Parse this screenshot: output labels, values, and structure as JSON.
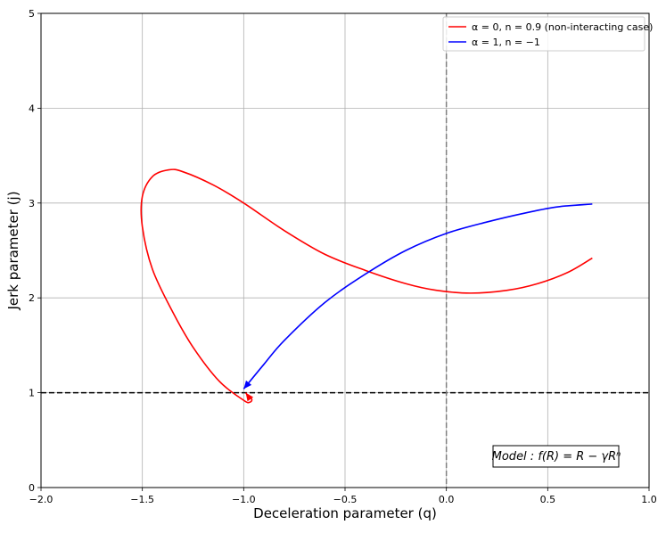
{
  "chart_data": {
    "type": "line",
    "xlabel": "Deceleration parameter (q)",
    "ylabel": "Jerk parameter (j)",
    "xlim": [
      -2.0,
      1.0
    ],
    "ylim": [
      0,
      5
    ],
    "xticks": [
      -2.0,
      -1.5,
      -1.0,
      -0.5,
      0.0,
      0.5,
      1.0
    ],
    "xtick_labels": [
      "−2.0",
      "−1.5",
      "−1.0",
      "−0.5",
      "0.0",
      "0.5",
      "1.0"
    ],
    "yticks": [
      0,
      1,
      2,
      3,
      4,
      5
    ],
    "ytick_labels": [
      "0",
      "1",
      "2",
      "3",
      "4",
      "5"
    ],
    "grid": true,
    "legend_position": "top-right",
    "reference_lines": [
      {
        "orientation": "horizontal",
        "value": 1,
        "color": "#000000",
        "style": "dashed"
      },
      {
        "orientation": "vertical",
        "value": 0,
        "color": "#808080",
        "style": "dashed"
      }
    ],
    "annotation": "Model : f(R) = R − γRⁿ",
    "series": [
      {
        "name": "α = 0, n = 0.9 (non-interacting case)",
        "color": "#ff0000",
        "points": [
          [
            0.72,
            2.42
          ],
          [
            0.6,
            2.27
          ],
          [
            0.45,
            2.15
          ],
          [
            0.3,
            2.08
          ],
          [
            0.12,
            2.05
          ],
          [
            -0.05,
            2.08
          ],
          [
            -0.2,
            2.15
          ],
          [
            -0.4,
            2.29
          ],
          [
            -0.6,
            2.46
          ],
          [
            -0.8,
            2.71
          ],
          [
            -1.0,
            3.0
          ],
          [
            -1.15,
            3.19
          ],
          [
            -1.3,
            3.33
          ],
          [
            -1.37,
            3.35
          ],
          [
            -1.45,
            3.28
          ],
          [
            -1.5,
            3.07
          ],
          [
            -1.5,
            2.75
          ],
          [
            -1.45,
            2.3
          ],
          [
            -1.35,
            1.85
          ],
          [
            -1.25,
            1.48
          ],
          [
            -1.12,
            1.12
          ],
          [
            -1.0,
            0.92
          ],
          [
            -0.97,
            0.9
          ],
          [
            -0.96,
            0.93
          ],
          [
            -0.98,
            0.97
          ],
          [
            -0.99,
            1.0
          ]
        ]
      },
      {
        "name": "α = 1, n = −1",
        "color": "#0000ff",
        "points": [
          [
            0.72,
            2.99
          ],
          [
            0.55,
            2.96
          ],
          [
            0.4,
            2.9
          ],
          [
            0.2,
            2.8
          ],
          [
            0.0,
            2.68
          ],
          [
            -0.2,
            2.5
          ],
          [
            -0.4,
            2.25
          ],
          [
            -0.6,
            1.95
          ],
          [
            -0.8,
            1.55
          ],
          [
            -0.9,
            1.3
          ],
          [
            -1.0,
            1.04
          ]
        ]
      }
    ]
  }
}
